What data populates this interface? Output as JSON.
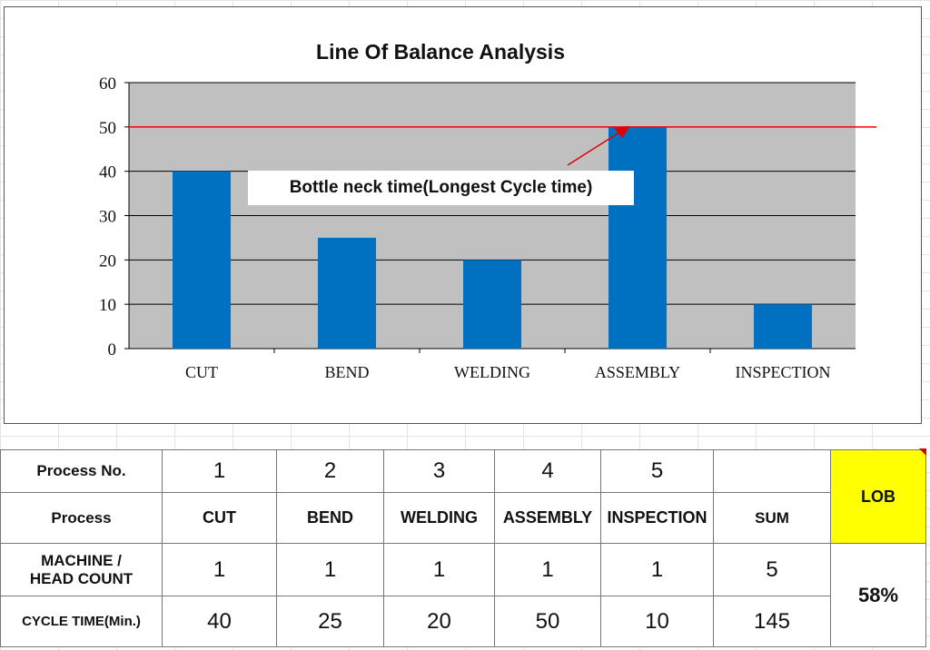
{
  "chart_data": {
    "type": "bar",
    "title": "Line Of Balance  Analysis",
    "categories": [
      "CUT",
      "BEND",
      "WELDING",
      "ASSEMBLY",
      "INSPECTION"
    ],
    "values": [
      40,
      25,
      20,
      50,
      10
    ],
    "ylim": [
      0,
      60
    ],
    "yticks": [
      "0",
      "10",
      "20",
      "30",
      "40",
      "50",
      "60"
    ],
    "grid": true,
    "bar_color": "#0070c0",
    "plot_background": "#c0c0c0",
    "reference_line": {
      "value": 50,
      "color": "#ff0000"
    },
    "annotation": "Bottle neck time(Longest Cycle time)"
  },
  "table": {
    "row_labels": {
      "process_no": "Process No.",
      "process": "Process",
      "machine_1": "MACHINE /",
      "machine_2": "HEAD COUNT",
      "cycle": "CYCLE TIME(Min.)"
    },
    "process_numbers": [
      "1",
      "2",
      "3",
      "4",
      "5"
    ],
    "process_names": [
      "CUT",
      "BEND",
      "WELDING",
      "ASSEMBLY",
      "INSPECTION"
    ],
    "machine_counts": [
      "1",
      "1",
      "1",
      "1",
      "1"
    ],
    "cycle_times": [
      "40",
      "25",
      "20",
      "50",
      "10"
    ],
    "sum_label": "SUM",
    "machine_sum": "5",
    "cycle_sum": "145",
    "lob_label": "LOB",
    "lob_value": "58%",
    "lob_color": "#ffff00"
  }
}
